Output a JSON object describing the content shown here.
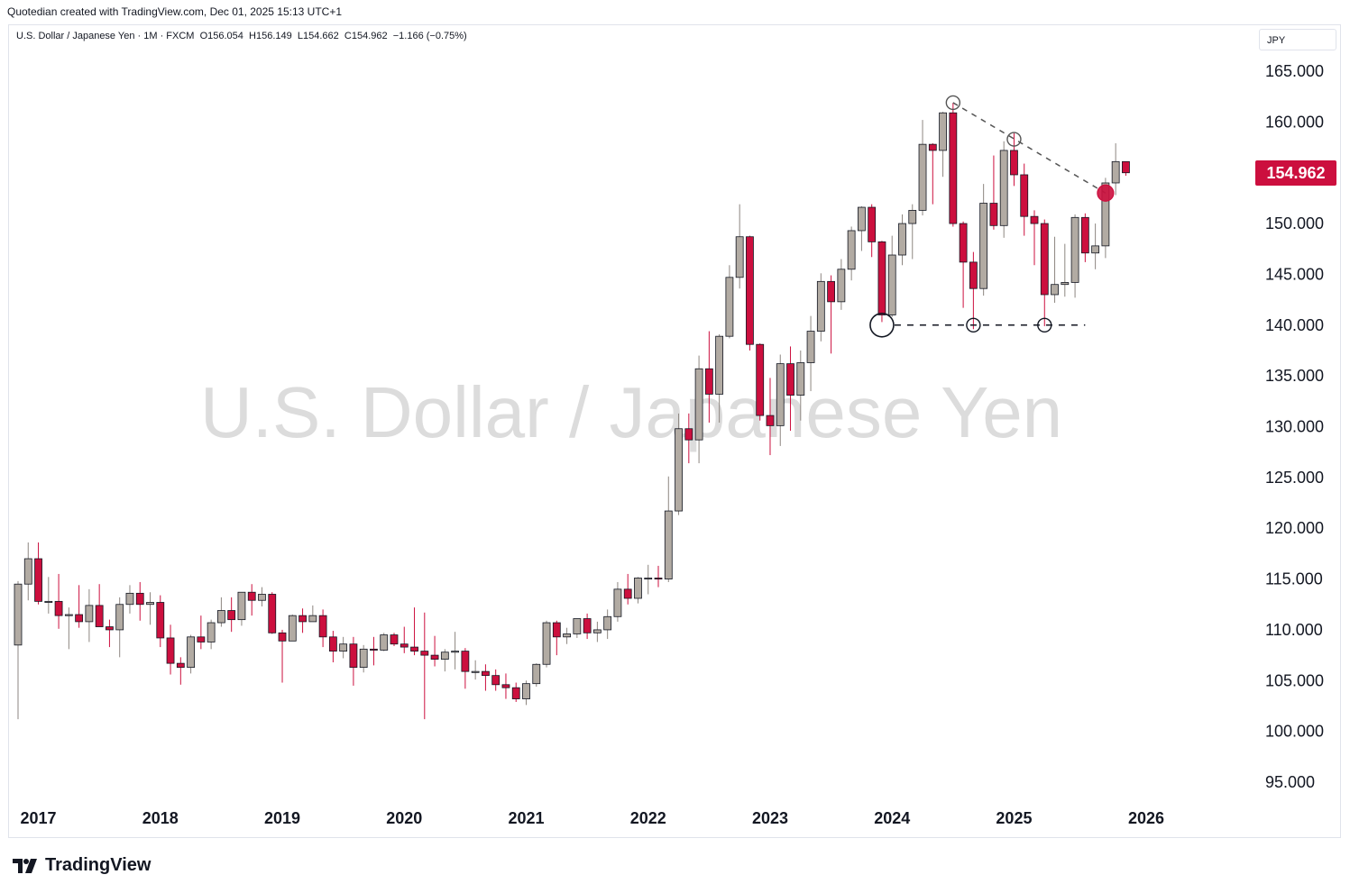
{
  "header": {
    "credit": "Quotedian created with TradingView.com, Dec 01, 2025 15:13 UTC+1"
  },
  "legend": {
    "symbol": "U.S. Dollar / Japanese Yen · 1M · FXCM",
    "open": "O156.054",
    "high": "H156.149",
    "low": "L154.662",
    "close": "C154.962",
    "change": "−1.166 (−0.75%)"
  },
  "currency_button": "JPY",
  "watermark": "U.S. Dollar / Japanese Yen",
  "last_price_label": "154.962",
  "brand": {
    "name": "TradingView",
    "icon": "tradingview-logo-icon"
  },
  "colors": {
    "up": "#b2aba3",
    "down": "#cc0f3e",
    "price_tag": "#cc0f3e"
  },
  "chart_data": {
    "type": "candlestick",
    "interval": "1M",
    "ylim": [
      93,
      167
    ],
    "y_ticks": [
      "95.000",
      "100.000",
      "105.000",
      "110.000",
      "115.000",
      "120.000",
      "125.000",
      "130.000",
      "135.000",
      "140.000",
      "145.000",
      "150.000",
      "155.000",
      "160.000",
      "165.000"
    ],
    "x_labels": [
      "2017",
      "2018",
      "2019",
      "2020",
      "2021",
      "2022",
      "2023",
      "2024",
      "2025",
      "2026"
    ],
    "candles": [
      {
        "t": "2016-11",
        "o": 108.5,
        "h": 114.8,
        "l": 101.2,
        "c": 114.5
      },
      {
        "t": "2016-12",
        "o": 114.5,
        "h": 118.6,
        "l": 112.9,
        "c": 117.0
      },
      {
        "t": "2017-01",
        "o": 117.0,
        "h": 118.6,
        "l": 112.5,
        "c": 112.8
      },
      {
        "t": "2017-02",
        "o": 112.8,
        "h": 115.2,
        "l": 111.6,
        "c": 112.8
      },
      {
        "t": "2017-03",
        "o": 112.8,
        "h": 115.5,
        "l": 110.1,
        "c": 111.4
      },
      {
        "t": "2017-04",
        "o": 111.4,
        "h": 112.2,
        "l": 108.1,
        "c": 111.5
      },
      {
        "t": "2017-05",
        "o": 111.5,
        "h": 114.4,
        "l": 110.2,
        "c": 110.8
      },
      {
        "t": "2017-06",
        "o": 110.8,
        "h": 114.0,
        "l": 108.8,
        "c": 112.4
      },
      {
        "t": "2017-07",
        "o": 112.4,
        "h": 114.5,
        "l": 110.6,
        "c": 110.3
      },
      {
        "t": "2017-08",
        "o": 110.3,
        "h": 111.0,
        "l": 108.3,
        "c": 110.0
      },
      {
        "t": "2017-09",
        "o": 110.0,
        "h": 113.2,
        "l": 107.3,
        "c": 112.5
      },
      {
        "t": "2017-10",
        "o": 112.5,
        "h": 114.4,
        "l": 111.6,
        "c": 113.6
      },
      {
        "t": "2017-11",
        "o": 113.6,
        "h": 114.7,
        "l": 110.9,
        "c": 112.5
      },
      {
        "t": "2017-12",
        "o": 112.5,
        "h": 113.7,
        "l": 110.5,
        "c": 112.7
      },
      {
        "t": "2018-01",
        "o": 112.7,
        "h": 113.4,
        "l": 108.3,
        "c": 109.2
      },
      {
        "t": "2018-02",
        "o": 109.2,
        "h": 110.5,
        "l": 105.6,
        "c": 106.7
      },
      {
        "t": "2018-03",
        "o": 106.7,
        "h": 107.3,
        "l": 104.6,
        "c": 106.3
      },
      {
        "t": "2018-04",
        "o": 106.3,
        "h": 109.5,
        "l": 105.7,
        "c": 109.3
      },
      {
        "t": "2018-05",
        "o": 109.3,
        "h": 111.4,
        "l": 108.1,
        "c": 108.8
      },
      {
        "t": "2018-06",
        "o": 108.8,
        "h": 111.0,
        "l": 108.1,
        "c": 110.7
      },
      {
        "t": "2018-07",
        "o": 110.7,
        "h": 113.2,
        "l": 110.3,
        "c": 111.9
      },
      {
        "t": "2018-08",
        "o": 111.9,
        "h": 113.2,
        "l": 109.8,
        "c": 111.0
      },
      {
        "t": "2018-09",
        "o": 111.0,
        "h": 113.7,
        "l": 110.4,
        "c": 113.7
      },
      {
        "t": "2018-10",
        "o": 113.7,
        "h": 114.5,
        "l": 111.4,
        "c": 112.9
      },
      {
        "t": "2018-11",
        "o": 112.9,
        "h": 114.2,
        "l": 112.3,
        "c": 113.5
      },
      {
        "t": "2018-12",
        "o": 113.5,
        "h": 113.7,
        "l": 109.6,
        "c": 109.7
      },
      {
        "t": "2019-01",
        "o": 109.7,
        "h": 110.0,
        "l": 104.8,
        "c": 108.9
      },
      {
        "t": "2019-02",
        "o": 108.9,
        "h": 111.5,
        "l": 108.9,
        "c": 111.4
      },
      {
        "t": "2019-03",
        "o": 111.4,
        "h": 112.1,
        "l": 109.7,
        "c": 110.8
      },
      {
        "t": "2019-04",
        "o": 110.8,
        "h": 112.4,
        "l": 110.8,
        "c": 111.4
      },
      {
        "t": "2019-05",
        "o": 111.4,
        "h": 112.0,
        "l": 108.3,
        "c": 109.3
      },
      {
        "t": "2019-06",
        "o": 109.3,
        "h": 109.9,
        "l": 106.8,
        "c": 107.9
      },
      {
        "t": "2019-07",
        "o": 107.9,
        "h": 109.3,
        "l": 107.2,
        "c": 108.6
      },
      {
        "t": "2019-08",
        "o": 108.6,
        "h": 109.3,
        "l": 104.5,
        "c": 106.3
      },
      {
        "t": "2019-09",
        "o": 106.3,
        "h": 108.5,
        "l": 105.8,
        "c": 108.1
      },
      {
        "t": "2019-10",
        "o": 108.1,
        "h": 109.3,
        "l": 106.5,
        "c": 108.0
      },
      {
        "t": "2019-11",
        "o": 108.0,
        "h": 109.7,
        "l": 107.9,
        "c": 109.5
      },
      {
        "t": "2019-12",
        "o": 109.5,
        "h": 109.7,
        "l": 108.4,
        "c": 108.6
      },
      {
        "t": "2020-01",
        "o": 108.6,
        "h": 110.3,
        "l": 107.7,
        "c": 108.3
      },
      {
        "t": "2020-02",
        "o": 108.3,
        "h": 112.2,
        "l": 107.5,
        "c": 107.9
      },
      {
        "t": "2020-03",
        "o": 107.9,
        "h": 111.7,
        "l": 101.2,
        "c": 107.5
      },
      {
        "t": "2020-04",
        "o": 107.5,
        "h": 109.4,
        "l": 106.4,
        "c": 107.1
      },
      {
        "t": "2020-05",
        "o": 107.1,
        "h": 108.1,
        "l": 105.9,
        "c": 107.8
      },
      {
        "t": "2020-06",
        "o": 107.8,
        "h": 109.8,
        "l": 106.1,
        "c": 107.9
      },
      {
        "t": "2020-07",
        "o": 107.9,
        "h": 108.2,
        "l": 104.2,
        "c": 105.9
      },
      {
        "t": "2020-08",
        "o": 105.9,
        "h": 107.0,
        "l": 105.1,
        "c": 105.9
      },
      {
        "t": "2020-09",
        "o": 105.9,
        "h": 106.6,
        "l": 104.0,
        "c": 105.5
      },
      {
        "t": "2020-10",
        "o": 105.5,
        "h": 106.1,
        "l": 104.0,
        "c": 104.6
      },
      {
        "t": "2020-11",
        "o": 104.6,
        "h": 105.7,
        "l": 103.2,
        "c": 104.3
      },
      {
        "t": "2020-12",
        "o": 104.3,
        "h": 104.8,
        "l": 102.9,
        "c": 103.2
      },
      {
        "t": "2021-01",
        "o": 103.2,
        "h": 105.0,
        "l": 102.6,
        "c": 104.7
      },
      {
        "t": "2021-02",
        "o": 104.7,
        "h": 106.7,
        "l": 104.4,
        "c": 106.6
      },
      {
        "t": "2021-03",
        "o": 106.6,
        "h": 110.9,
        "l": 106.3,
        "c": 110.7
      },
      {
        "t": "2021-04",
        "o": 110.7,
        "h": 110.9,
        "l": 107.5,
        "c": 109.3
      },
      {
        "t": "2021-05",
        "o": 109.3,
        "h": 110.2,
        "l": 108.6,
        "c": 109.6
      },
      {
        "t": "2021-06",
        "o": 109.6,
        "h": 111.1,
        "l": 109.2,
        "c": 111.1
      },
      {
        "t": "2021-07",
        "o": 111.1,
        "h": 111.6,
        "l": 109.1,
        "c": 109.7
      },
      {
        "t": "2021-08",
        "o": 109.7,
        "h": 110.8,
        "l": 108.8,
        "c": 110.0
      },
      {
        "t": "2021-09",
        "o": 110.0,
        "h": 112.0,
        "l": 109.1,
        "c": 111.3
      },
      {
        "t": "2021-10",
        "o": 111.3,
        "h": 114.7,
        "l": 110.8,
        "c": 114.0
      },
      {
        "t": "2021-11",
        "o": 114.0,
        "h": 115.5,
        "l": 112.5,
        "c": 113.1
      },
      {
        "t": "2021-12",
        "o": 113.1,
        "h": 115.2,
        "l": 112.6,
        "c": 115.1
      },
      {
        "t": "2022-01",
        "o": 115.1,
        "h": 116.4,
        "l": 113.5,
        "c": 115.1
      },
      {
        "t": "2022-02",
        "o": 115.1,
        "h": 116.3,
        "l": 114.2,
        "c": 115.0
      },
      {
        "t": "2022-03",
        "o": 115.0,
        "h": 125.1,
        "l": 114.7,
        "c": 121.7
      },
      {
        "t": "2022-04",
        "o": 121.7,
        "h": 131.3,
        "l": 121.3,
        "c": 129.8
      },
      {
        "t": "2022-05",
        "o": 129.8,
        "h": 131.3,
        "l": 126.4,
        "c": 128.7
      },
      {
        "t": "2022-06",
        "o": 128.7,
        "h": 137.0,
        "l": 126.4,
        "c": 135.7
      },
      {
        "t": "2022-07",
        "o": 135.7,
        "h": 139.4,
        "l": 130.4,
        "c": 133.2
      },
      {
        "t": "2022-08",
        "o": 133.2,
        "h": 139.1,
        "l": 130.4,
        "c": 138.9
      },
      {
        "t": "2022-09",
        "o": 138.9,
        "h": 145.9,
        "l": 138.7,
        "c": 144.7
      },
      {
        "t": "2022-10",
        "o": 144.7,
        "h": 151.9,
        "l": 143.6,
        "c": 148.7
      },
      {
        "t": "2022-11",
        "o": 148.7,
        "h": 148.8,
        "l": 137.5,
        "c": 138.1
      },
      {
        "t": "2022-12",
        "o": 138.1,
        "h": 138.2,
        "l": 130.6,
        "c": 131.1
      },
      {
        "t": "2023-01",
        "o": 131.1,
        "h": 134.8,
        "l": 127.2,
        "c": 130.1
      },
      {
        "t": "2023-02",
        "o": 130.1,
        "h": 137.1,
        "l": 128.1,
        "c": 136.2
      },
      {
        "t": "2023-03",
        "o": 136.2,
        "h": 137.9,
        "l": 129.6,
        "c": 133.1
      },
      {
        "t": "2023-04",
        "o": 133.1,
        "h": 137.5,
        "l": 130.6,
        "c": 136.3
      },
      {
        "t": "2023-05",
        "o": 136.3,
        "h": 140.9,
        "l": 133.5,
        "c": 139.4
      },
      {
        "t": "2023-06",
        "o": 139.4,
        "h": 145.1,
        "l": 138.4,
        "c": 144.3
      },
      {
        "t": "2023-07",
        "o": 144.3,
        "h": 144.9,
        "l": 137.2,
        "c": 142.3
      },
      {
        "t": "2023-08",
        "o": 142.3,
        "h": 146.5,
        "l": 141.5,
        "c": 145.5
      },
      {
        "t": "2023-09",
        "o": 145.5,
        "h": 149.7,
        "l": 144.4,
        "c": 149.3
      },
      {
        "t": "2023-10",
        "o": 149.3,
        "h": 151.7,
        "l": 147.3,
        "c": 151.6
      },
      {
        "t": "2023-11",
        "o": 151.6,
        "h": 151.9,
        "l": 146.7,
        "c": 148.2
      },
      {
        "t": "2023-12",
        "o": 148.2,
        "h": 148.3,
        "l": 140.3,
        "c": 141.0
      },
      {
        "t": "2024-01",
        "o": 141.0,
        "h": 148.8,
        "l": 140.8,
        "c": 146.9
      },
      {
        "t": "2024-02",
        "o": 146.9,
        "h": 150.9,
        "l": 145.9,
        "c": 150.0
      },
      {
        "t": "2024-03",
        "o": 150.0,
        "h": 151.9,
        "l": 146.5,
        "c": 151.3
      },
      {
        "t": "2024-04",
        "o": 151.3,
        "h": 160.2,
        "l": 150.8,
        "c": 157.8
      },
      {
        "t": "2024-05",
        "o": 157.8,
        "h": 157.9,
        "l": 151.9,
        "c": 157.2
      },
      {
        "t": "2024-06",
        "o": 157.2,
        "h": 161.0,
        "l": 154.6,
        "c": 160.9
      },
      {
        "t": "2024-07",
        "o": 160.9,
        "h": 161.9,
        "l": 149.7,
        "c": 150.0
      },
      {
        "t": "2024-08",
        "o": 150.0,
        "h": 150.2,
        "l": 141.7,
        "c": 146.2
      },
      {
        "t": "2024-09",
        "o": 146.2,
        "h": 147.2,
        "l": 139.6,
        "c": 143.6
      },
      {
        "t": "2024-10",
        "o": 143.6,
        "h": 153.9,
        "l": 142.9,
        "c": 152.0
      },
      {
        "t": "2024-11",
        "o": 152.0,
        "h": 156.7,
        "l": 149.4,
        "c": 149.8
      },
      {
        "t": "2024-12",
        "o": 149.8,
        "h": 158.1,
        "l": 148.6,
        "c": 157.2
      },
      {
        "t": "2025-01",
        "o": 157.2,
        "h": 158.9,
        "l": 153.7,
        "c": 154.8
      },
      {
        "t": "2025-02",
        "o": 154.8,
        "h": 155.9,
        "l": 148.8,
        "c": 150.7
      },
      {
        "t": "2025-03",
        "o": 150.7,
        "h": 151.3,
        "l": 145.9,
        "c": 150.0
      },
      {
        "t": "2025-04",
        "o": 150.0,
        "h": 150.4,
        "l": 139.9,
        "c": 143.0
      },
      {
        "t": "2025-05",
        "o": 143.0,
        "h": 148.7,
        "l": 142.2,
        "c": 144.0
      },
      {
        "t": "2025-06",
        "o": 144.0,
        "h": 148.0,
        "l": 142.8,
        "c": 144.2
      },
      {
        "t": "2025-07",
        "o": 144.2,
        "h": 150.9,
        "l": 142.7,
        "c": 150.6
      },
      {
        "t": "2025-08",
        "o": 150.6,
        "h": 151.0,
        "l": 146.2,
        "c": 147.1
      },
      {
        "t": "2025-09",
        "o": 147.1,
        "h": 150.0,
        "l": 145.5,
        "c": 147.8
      },
      {
        "t": "2025-10",
        "o": 147.8,
        "h": 154.5,
        "l": 146.6,
        "c": 154.0
      },
      {
        "t": "2025-11",
        "o": 154.0,
        "h": 157.9,
        "l": 152.8,
        "c": 156.1
      },
      {
        "t": "2025-12",
        "o": 156.1,
        "h": 156.1,
        "l": 154.7,
        "c": 155.0
      }
    ],
    "annotations": {
      "resistance_line": {
        "from": {
          "t": "2024-07",
          "price": 161.9
        },
        "to": {
          "t": "2025-10",
          "price": 153.0
        },
        "style": "dashed"
      },
      "support_line": {
        "from": {
          "t": "2023-12",
          "price": 140.0
        },
        "to": {
          "t": "2025-08",
          "price": 140.0
        },
        "style": "dashed"
      },
      "circles": [
        {
          "t": "2023-12",
          "price": 140.0,
          "size": "large",
          "color": "#131722"
        },
        {
          "t": "2024-09",
          "price": 140.0,
          "size": "small",
          "color": "#131722"
        },
        {
          "t": "2025-04",
          "price": 140.0,
          "size": "small",
          "color": "#131722"
        },
        {
          "t": "2024-07",
          "price": 161.9,
          "size": "small",
          "color": "#555555"
        },
        {
          "t": "2025-01",
          "price": 158.3,
          "size": "small",
          "color": "#555555"
        },
        {
          "t": "2025-10",
          "price": 153.0,
          "size": "filled",
          "color": "#cc0f3e"
        }
      ]
    }
  }
}
